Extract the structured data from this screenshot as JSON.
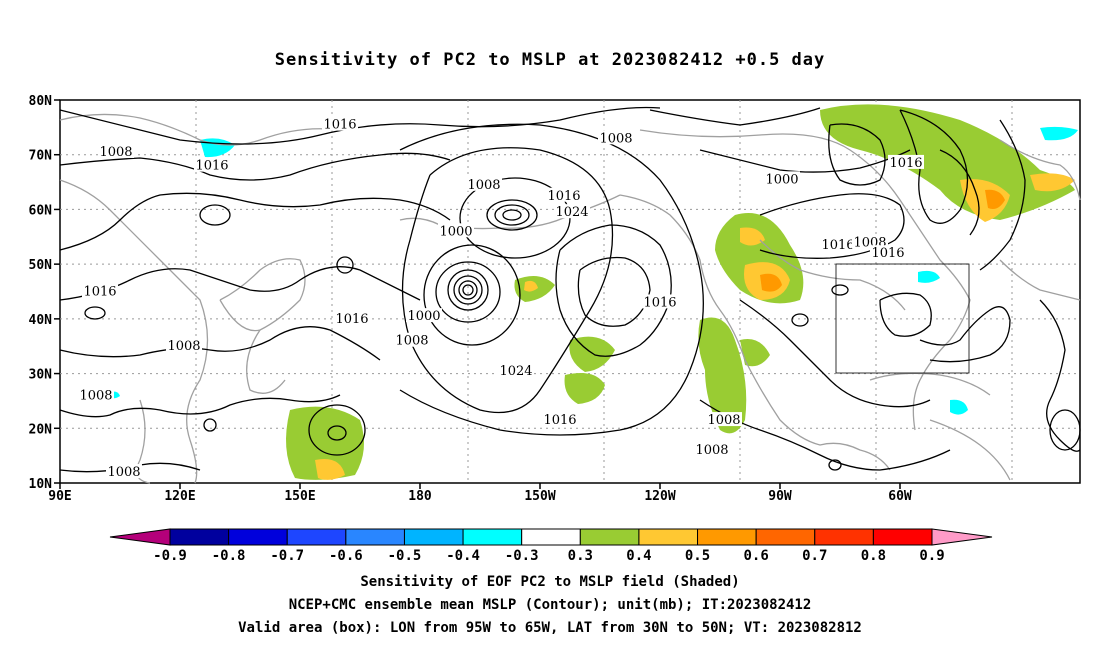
{
  "title": "Sensitivity of PC2 to MSLP at 2023082412 +0.5 day",
  "lat_labels": [
    "80N",
    "70N",
    "60N",
    "50N",
    "40N",
    "30N",
    "20N",
    "10N"
  ],
  "lon_labels": [
    "90E",
    "120E",
    "150E",
    "180",
    "150W",
    "120W",
    "90W",
    "60W"
  ],
  "contour_labels": [
    {
      "text": "1016",
      "lon": 160,
      "lat": 75.5
    },
    {
      "text": "1008",
      "lon": 104,
      "lat": 70.5
    },
    {
      "text": "1016",
      "lon": 128,
      "lat": 68
    },
    {
      "text": "1008",
      "lon": 196,
      "lat": 64.5
    },
    {
      "text": "1008",
      "lon": 229,
      "lat": 73
    },
    {
      "text": "1016",
      "lon": 216,
      "lat": 62.5
    },
    {
      "text": "1024",
      "lon": 218,
      "lat": 59.5
    },
    {
      "text": "1000",
      "lon": 189,
      "lat": 56
    },
    {
      "text": "1000",
      "lon": 270.5,
      "lat": 65.5
    },
    {
      "text": "1016",
      "lon": 284.5,
      "lat": 53.5
    },
    {
      "text": "1008",
      "lon": 292.5,
      "lat": 54
    },
    {
      "text": "1016",
      "lon": 297,
      "lat": 52
    },
    {
      "text": "1016",
      "lon": 301.5,
      "lat": 68.5
    },
    {
      "text": "1016",
      "lon": 100,
      "lat": 45
    },
    {
      "text": "1016",
      "lon": 163,
      "lat": 40
    },
    {
      "text": "1000",
      "lon": 181,
      "lat": 40.5
    },
    {
      "text": "1008",
      "lon": 178,
      "lat": 36
    },
    {
      "text": "1008",
      "lon": 121,
      "lat": 35
    },
    {
      "text": "1016",
      "lon": 240,
      "lat": 43
    },
    {
      "text": "1024",
      "lon": 204,
      "lat": 30.5
    },
    {
      "text": "1016",
      "lon": 215,
      "lat": 21.5
    },
    {
      "text": "1008",
      "lon": 99,
      "lat": 26
    },
    {
      "text": "1008",
      "lon": 256,
      "lat": 21.5
    },
    {
      "text": "1008",
      "lon": 253,
      "lat": 16
    },
    {
      "text": "1008",
      "lon": 106,
      "lat": 12
    }
  ],
  "valid_area": {
    "lon_min": -95,
    "lon_max": -65,
    "lat_min": 30,
    "lat_max": 50
  },
  "colorbar": {
    "labels": [
      "-0.9",
      "-0.8",
      "-0.7",
      "-0.6",
      "-0.5",
      "-0.4",
      "-0.3",
      "0.3",
      "0.4",
      "0.5",
      "0.6",
      "0.7",
      "0.8",
      "0.9"
    ],
    "colors": [
      "#b4007a",
      "#00009e",
      "#0000dc",
      "#1e46ff",
      "#2986ff",
      "#00b4ff",
      "#00ffff",
      "#ffffff",
      "#99cc33",
      "#ffc832",
      "#ff9900",
      "#ff6600",
      "#ff3200",
      "#ff0000",
      "#ff9bc8"
    ]
  },
  "caption_lines": [
    "Sensitivity of EOF PC2 to MSLP field (Shaded)",
    "NCEP+CMC ensemble mean MSLP (Contour); unit(mb); IT:2023082412",
    "Valid area (box): LON from 95W to 65W, LAT from 30N to 50N; VT: 2023082812"
  ]
}
